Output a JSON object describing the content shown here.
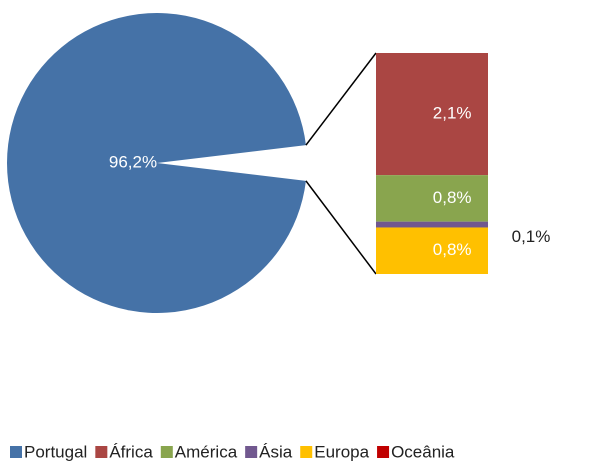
{
  "chart_data": {
    "type": "pie-of-bar",
    "categories": [
      "Portugal",
      "África",
      "América",
      "Ásia",
      "Europa",
      "Oceânia"
    ],
    "values": [
      96.2,
      2.1,
      0.8,
      0.1,
      0.8,
      0
    ],
    "value_labels": [
      "96,2%",
      "2,1%",
      "0,8%",
      "0,1%",
      "0,8%",
      null
    ],
    "colors": [
      "#4572a7",
      "#aa4643",
      "#89a54e",
      "#71588f",
      "#ffc000",
      "#c00000"
    ],
    "legend": "bottom"
  }
}
